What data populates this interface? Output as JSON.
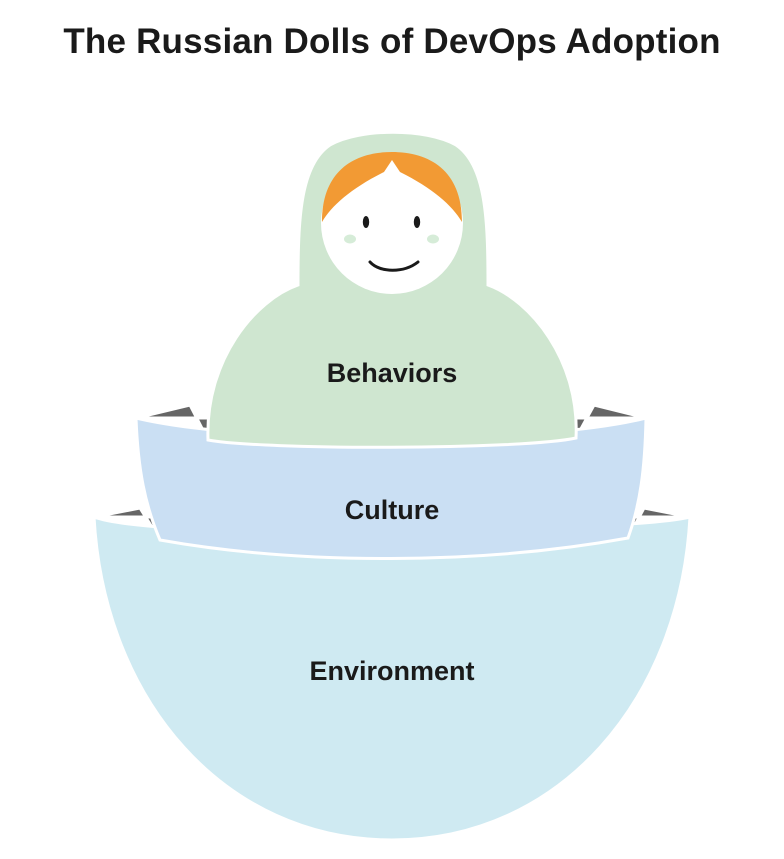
{
  "title": "The Russian Dolls of DevOps Adoption",
  "layers": {
    "inner": {
      "label": "Behaviors",
      "color": "#cfe6d0"
    },
    "middle": {
      "label": "Culture",
      "color": "#cadff3"
    },
    "outer": {
      "label": "Environment",
      "color": "#cfeaf2"
    }
  },
  "doll": {
    "hair_color": "#f29a34",
    "face_color": "#ffffff",
    "cheek_color": "#d6ecd8"
  },
  "bowl_interior_color": "#666666"
}
